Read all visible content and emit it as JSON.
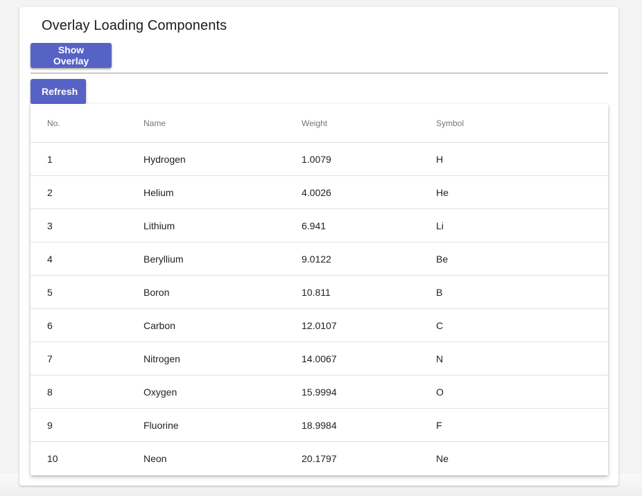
{
  "title": "Overlay Loading Components",
  "buttons": {
    "show_overlay": "Show Overlay",
    "refresh": "Refresh"
  },
  "colors": {
    "primary": "#5762c5",
    "divider": "#9e9e9e"
  },
  "table": {
    "headers": [
      "No.",
      "Name",
      "Weight",
      "Symbol"
    ],
    "rows": [
      [
        "1",
        "Hydrogen",
        "1.0079",
        "H"
      ],
      [
        "2",
        "Helium",
        "4.0026",
        "He"
      ],
      [
        "3",
        "Lithium",
        "6.941",
        "Li"
      ],
      [
        "4",
        "Beryllium",
        "9.0122",
        "Be"
      ],
      [
        "5",
        "Boron",
        "10.811",
        "B"
      ],
      [
        "6",
        "Carbon",
        "12.0107",
        "C"
      ],
      [
        "7",
        "Nitrogen",
        "14.0067",
        "N"
      ],
      [
        "8",
        "Oxygen",
        "15.9994",
        "O"
      ],
      [
        "9",
        "Fluorine",
        "18.9984",
        "F"
      ],
      [
        "10",
        "Neon",
        "20.1797",
        "Ne"
      ]
    ]
  }
}
